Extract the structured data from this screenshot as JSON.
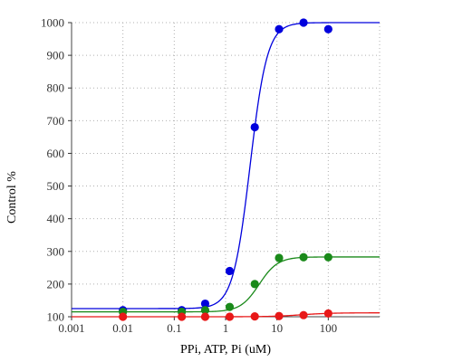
{
  "chart_data": {
    "type": "scatter",
    "title": "",
    "xlabel": "PPi, ATP, Pi (uM)",
    "ylabel": "Control %",
    "xscale": "log",
    "xlim": [
      0.001,
      1000
    ],
    "ylim": [
      100,
      1000
    ],
    "x_ticks": [
      {
        "value": 0.001,
        "label": "0.001"
      },
      {
        "value": 0.01,
        "label": "0.01"
      },
      {
        "value": 0.1,
        "label": "0.1"
      },
      {
        "value": 1,
        "label": "1"
      },
      {
        "value": 10,
        "label": "10"
      },
      {
        "value": 100,
        "label": "100"
      }
    ],
    "y_ticks": [
      {
        "value": 100,
        "label": "100"
      },
      {
        "value": 200,
        "label": "200"
      },
      {
        "value": 300,
        "label": "300"
      },
      {
        "value": 400,
        "label": "400"
      },
      {
        "value": 500,
        "label": "500"
      },
      {
        "value": 600,
        "label": "600"
      },
      {
        "value": 700,
        "label": "700"
      },
      {
        "value": 800,
        "label": "800"
      },
      {
        "value": 900,
        "label": "900"
      },
      {
        "value": 1000,
        "label": "1000"
      }
    ],
    "grid": true,
    "grid_style": "dotted",
    "legend": false,
    "series": [
      {
        "color": "#0000dd",
        "points": [
          [
            0.01,
            120
          ],
          [
            0.14,
            120
          ],
          [
            0.4,
            140
          ],
          [
            1.2,
            240
          ],
          [
            3.7,
            680
          ],
          [
            11,
            980
          ],
          [
            33,
            1000
          ],
          [
            100,
            980
          ]
        ],
        "fit": {
          "bottom": 125,
          "top": 1000,
          "ec50": 3,
          "hill": 2.6
        }
      },
      {
        "color": "#1a8a1a",
        "points": [
          [
            0.01,
            115
          ],
          [
            0.14,
            115
          ],
          [
            0.4,
            120
          ],
          [
            1.2,
            130
          ],
          [
            3.7,
            200
          ],
          [
            11,
            280
          ],
          [
            33,
            282
          ],
          [
            100,
            282
          ]
        ],
        "fit": {
          "bottom": 115,
          "top": 283,
          "ec50": 4.5,
          "hill": 2.4
        }
      },
      {
        "color": "#e81818",
        "points": [
          [
            0.01,
            100
          ],
          [
            0.14,
            100
          ],
          [
            0.4,
            100
          ],
          [
            1.2,
            100
          ],
          [
            3.7,
            101
          ],
          [
            11,
            102
          ],
          [
            33,
            105
          ],
          [
            100,
            110
          ]
        ],
        "fit": {
          "bottom": 100,
          "top": 112,
          "ec50": 30,
          "hill": 1.5
        }
      }
    ]
  }
}
